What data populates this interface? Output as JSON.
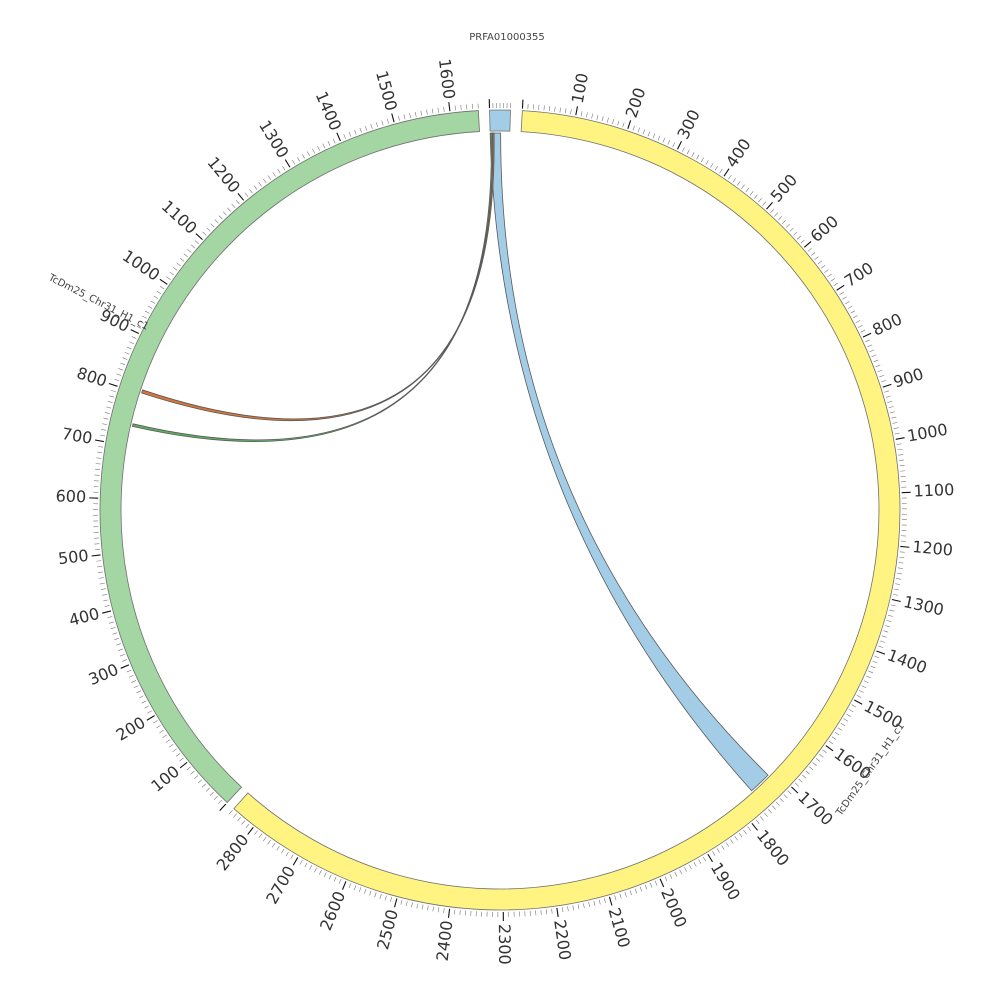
{
  "diagram": {
    "type": "circos",
    "segments": [
      {
        "id": "prfa",
        "name": "PRFA01000355",
        "length": 60,
        "color": "#a3cde6"
      },
      {
        "id": "yellow",
        "name": "TcDm25_Chr31_H1_c1",
        "length": 2850,
        "color": "#fff481"
      },
      {
        "id": "green",
        "name": "TcDm25_Chr31_H1_c1",
        "length": 1650,
        "color": "#a3d6a3"
      }
    ],
    "tick_labels": {
      "prfa": [],
      "yellow": [
        "100",
        "200",
        "300",
        "400",
        "500",
        "600",
        "700",
        "800",
        "900",
        "1000",
        "1100",
        "1200",
        "1300",
        "1400",
        "1500",
        "1600",
        "1700",
        "1800",
        "1900",
        "2000",
        "2100",
        "2200",
        "2300",
        "2400",
        "2500",
        "2600",
        "2700",
        "2800"
      ],
      "green": [
        "100",
        "200",
        "300",
        "400",
        "500",
        "600",
        "700",
        "800",
        "900",
        "1000",
        "1100",
        "1200",
        "1300",
        "1400",
        "1500",
        "1600"
      ]
    },
    "links": [
      {
        "name": "link-prfa-yellow",
        "from": [
          "prfa",
          0,
          32
        ],
        "to": [
          "yellow",
          1715,
          1760
        ],
        "color": "#a3cde6"
      },
      {
        "name": "link-prfa-green-a",
        "from": [
          "prfa",
          8,
          12
        ],
        "to": [
          "green",
          802,
          808
        ],
        "color": "#d9743a"
      },
      {
        "name": "link-prfa-green-b",
        "from": [
          "prfa",
          3,
          7
        ],
        "to": [
          "green",
          737,
          742
        ],
        "color": "#5fae5f"
      }
    ]
  }
}
